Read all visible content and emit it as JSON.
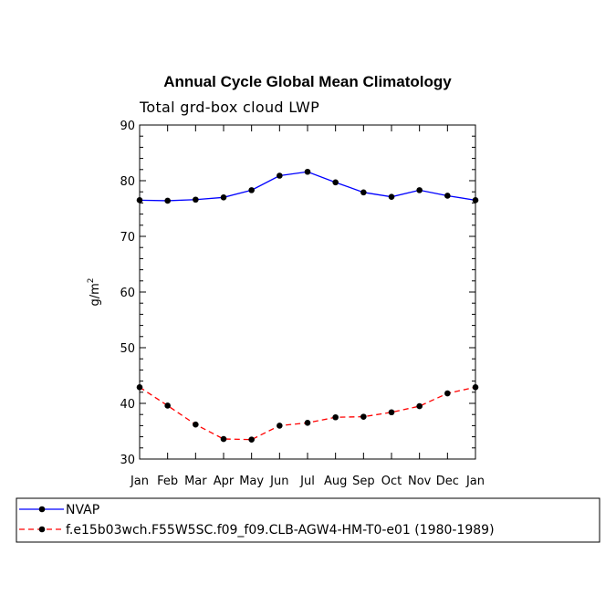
{
  "chart_data": {
    "type": "line",
    "title": "Annual Cycle Global Mean Climatology",
    "subtitle": "Total grd-box cloud LWP",
    "xlabel": "",
    "ylabel": "g/m",
    "ylabel_superscript": "2",
    "ylim": [
      30,
      90
    ],
    "yticks": [
      30,
      40,
      50,
      60,
      70,
      80,
      90
    ],
    "categories": [
      "Jan",
      "Feb",
      "Mar",
      "Apr",
      "May",
      "Jun",
      "Jul",
      "Aug",
      "Sep",
      "Oct",
      "Nov",
      "Dec",
      "Jan"
    ],
    "series": [
      {
        "name": "NVAP",
        "color": "#0000ff",
        "dash": "solid",
        "values": [
          76.5,
          76.4,
          76.6,
          77.0,
          78.3,
          80.9,
          81.6,
          79.7,
          77.9,
          77.1,
          78.3,
          77.3,
          76.5
        ]
      },
      {
        "name": "f.e15b03wch.F55W5SC.f09_f09.CLB-AGW4-HM-T0-e01 (1980-1989)",
        "color": "#ff0000",
        "dash": "dashed",
        "values": [
          42.9,
          39.6,
          36.2,
          33.6,
          33.5,
          36.0,
          36.5,
          37.5,
          37.6,
          38.4,
          39.5,
          41.8,
          42.9
        ]
      }
    ],
    "legend_position": "bottom-left"
  }
}
